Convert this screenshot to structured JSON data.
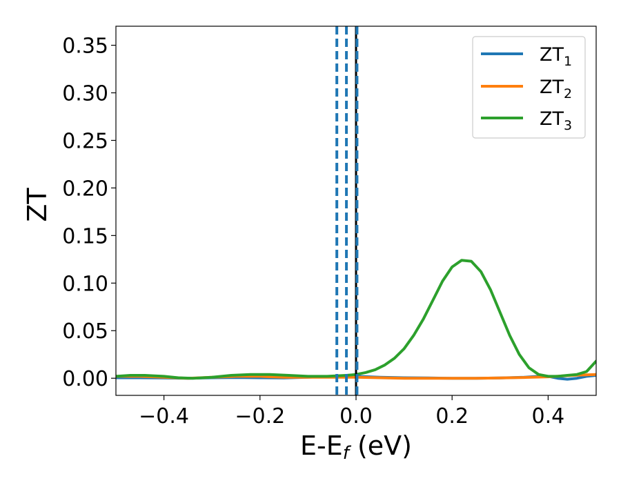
{
  "chart_data": {
    "type": "line",
    "title": "",
    "xlabel_main": "E-E",
    "xlabel_sub": "f",
    "xlabel_unit": " (eV)",
    "ylabel": "ZT",
    "xlim": [
      -0.5,
      0.5
    ],
    "ylim": [
      -0.018,
      0.37
    ],
    "xticks": [
      -0.4,
      -0.2,
      0.0,
      0.2,
      0.4
    ],
    "xtick_labels": [
      "−0.4",
      "−0.2",
      "0.0",
      "0.2",
      "0.4"
    ],
    "yticks": [
      0.0,
      0.05,
      0.1,
      0.15,
      0.2,
      0.25,
      0.3,
      0.35
    ],
    "ytick_labels": [
      "0.00",
      "0.05",
      "0.10",
      "0.15",
      "0.20",
      "0.25",
      "0.30",
      "0.35"
    ],
    "grid": false,
    "legend_position": "top-right",
    "vlines_dashed": [
      -0.04,
      -0.02,
      0.002
    ],
    "vline_solid": 0.0,
    "colors": {
      "ZT1": "#1f77b4",
      "ZT2": "#ff7f0e",
      "ZT3": "#2ca02c",
      "solid_vline": "#000000",
      "dashed_vline": "#1f77b4"
    },
    "series": [
      {
        "name": "ZT",
        "subscript": "1",
        "x": [
          -0.5,
          -0.45,
          -0.4,
          -0.35,
          -0.3,
          -0.25,
          -0.2,
          -0.15,
          -0.1,
          -0.05,
          0.0,
          0.05,
          0.1,
          0.15,
          0.2,
          0.25,
          0.3,
          0.35,
          0.38,
          0.4,
          0.42,
          0.44,
          0.46,
          0.48,
          0.5
        ],
        "y": [
          0.0005,
          0.0005,
          0.0003,
          0.0,
          0.0005,
          0.0008,
          0.0005,
          0.0003,
          0.001,
          0.002,
          0.002,
          0.001,
          0.0005,
          0.0003,
          0.0,
          0.0,
          0.0003,
          0.001,
          0.002,
          0.002,
          0.0,
          -0.001,
          0.0,
          0.002,
          0.003
        ]
      },
      {
        "name": "ZT",
        "subscript": "2",
        "x": [
          -0.5,
          -0.45,
          -0.4,
          -0.35,
          -0.3,
          -0.25,
          -0.2,
          -0.15,
          -0.1,
          -0.05,
          0.0,
          0.05,
          0.1,
          0.15,
          0.2,
          0.25,
          0.3,
          0.35,
          0.4,
          0.45,
          0.5
        ],
        "y": [
          0.002,
          0.002,
          0.001,
          0.0,
          0.001,
          0.002,
          0.002,
          0.001,
          0.001,
          0.001,
          0.001,
          0.0005,
          0.0,
          0.0,
          0.0,
          0.0,
          0.0003,
          0.0008,
          0.0015,
          0.003,
          0.004
        ]
      },
      {
        "name": "ZT",
        "subscript": "3",
        "x": [
          -0.5,
          -0.47,
          -0.44,
          -0.4,
          -0.37,
          -0.34,
          -0.3,
          -0.26,
          -0.22,
          -0.18,
          -0.14,
          -0.1,
          -0.06,
          -0.02,
          0.0,
          0.02,
          0.04,
          0.06,
          0.08,
          0.1,
          0.12,
          0.14,
          0.16,
          0.18,
          0.2,
          0.22,
          0.24,
          0.26,
          0.28,
          0.3,
          0.32,
          0.34,
          0.36,
          0.38,
          0.4,
          0.42,
          0.44,
          0.46,
          0.48,
          0.5
        ],
        "y": [
          0.002,
          0.003,
          0.003,
          0.002,
          0.0005,
          0.0,
          0.001,
          0.003,
          0.004,
          0.004,
          0.003,
          0.002,
          0.002,
          0.003,
          0.004,
          0.006,
          0.009,
          0.014,
          0.021,
          0.031,
          0.045,
          0.062,
          0.082,
          0.102,
          0.117,
          0.124,
          0.123,
          0.112,
          0.093,
          0.069,
          0.045,
          0.025,
          0.011,
          0.004,
          0.002,
          0.002,
          0.003,
          0.004,
          0.007,
          0.018
        ]
      }
    ]
  }
}
